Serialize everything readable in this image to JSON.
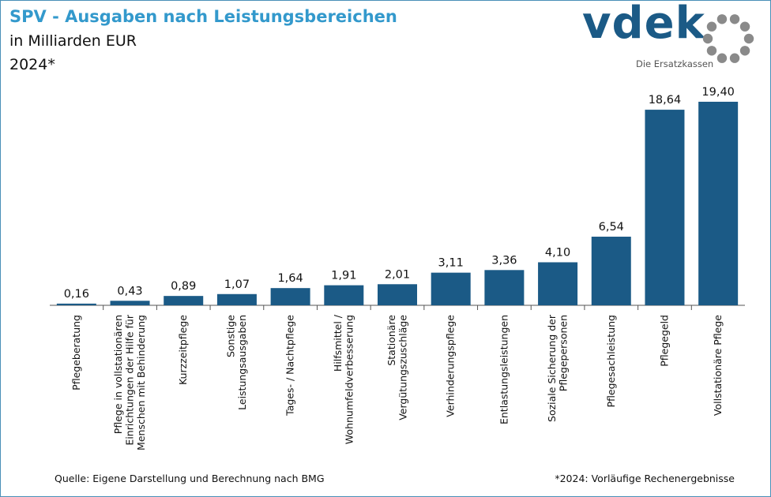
{
  "header": {
    "title": "SPV - Ausgaben nach Leistungsbereichen",
    "subtitle": "in Milliarden EUR",
    "year": "2024*"
  },
  "logo": {
    "word": "vdek",
    "tagline": "Die Ersatzkassen"
  },
  "footer": {
    "source": "Quelle: Eigene Darstellung und Berechnung nach BMG",
    "footnote": "*2024: Vorläufige Rechenergebnisse"
  },
  "colors": {
    "bar": "#1b5a86",
    "title": "#3399cc"
  },
  "chart_data": {
    "type": "bar",
    "title": "",
    "xlabel": "",
    "ylabel": "",
    "ylim": [
      0,
      20
    ],
    "grid": false,
    "categories": [
      [
        "Pflegeberatung"
      ],
      [
        "Pflege in vollstationären",
        "Einrichtungen der Hilfe für",
        "Menschen mit Behinderung"
      ],
      [
        "Kurzzeitpflege"
      ],
      [
        "Sonstige",
        "Leistungsausgaben"
      ],
      [
        "Tages- / Nachtpflege"
      ],
      [
        "Hilfsmittel /",
        "Wohnumfeldverbesserung"
      ],
      [
        "Stationäre",
        "Vergütungszuschläge"
      ],
      [
        "Verhinderungspflege"
      ],
      [
        "Entlastungsleistungen"
      ],
      [
        "Soziale Sicherung der",
        "Pflegepersonen"
      ],
      [
        "Pflegesachleistung"
      ],
      [
        "Pflegegeld"
      ],
      [
        "Vollstationäre Pflege"
      ]
    ],
    "values": [
      0.16,
      0.43,
      0.89,
      1.07,
      1.64,
      1.91,
      2.01,
      3.11,
      3.36,
      4.1,
      6.54,
      18.64,
      19.4
    ],
    "value_labels": [
      "0,16",
      "0,43",
      "0,89",
      "1,07",
      "1,64",
      "1,91",
      "2,01",
      "3,11",
      "3,36",
      "4,10",
      "6,54",
      "18,64",
      "19,40"
    ]
  }
}
